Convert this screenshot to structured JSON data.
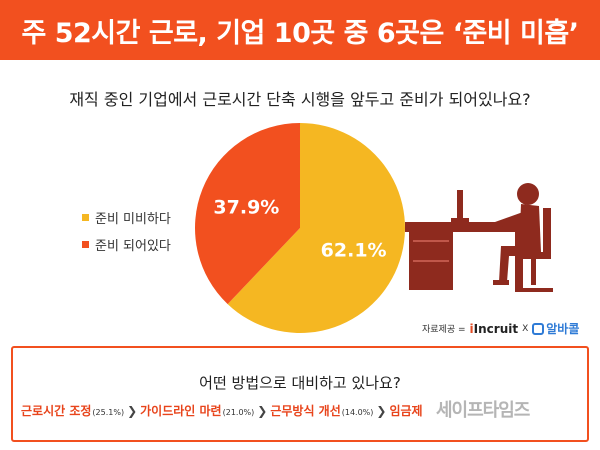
{
  "header": {
    "title": "주 52시간 근로, 기업 10곳 중 6곳은 ‘준비 미흡’"
  },
  "question": "재직 중인 기업에서 근로시간 단축 시행을 앞두고 준비가 되어있나요?",
  "legend": [
    {
      "label": "준비 미비하다",
      "color": "#f5b722"
    },
    {
      "label": "준비 되어있다",
      "color": "#f2501f"
    }
  ],
  "chart_data": {
    "type": "pie",
    "categories": [
      "준비 미비하다",
      "준비 되어있다"
    ],
    "values": [
      62.1,
      37.9
    ],
    "value_labels": [
      "62.1%",
      "37.9%"
    ],
    "colors": [
      "#f5b722",
      "#f2501f"
    ],
    "legend_position": "left"
  },
  "source": {
    "label": "자료제공 =",
    "brand1": "Incruit",
    "times": "X",
    "brand2": "알바콜"
  },
  "methods": {
    "title": "어떤 방법으로 대비하고 있나요?",
    "items": [
      {
        "label": "근로시간 조정",
        "pct": "(25.1%)"
      },
      {
        "label": "가이드라인 마련",
        "pct": "(21.0%)"
      },
      {
        "label": "근무방식 개선",
        "pct": "(14.0%)"
      },
      {
        "label": "임금제",
        "pct": ""
      }
    ]
  },
  "watermark": "세이프타임즈"
}
